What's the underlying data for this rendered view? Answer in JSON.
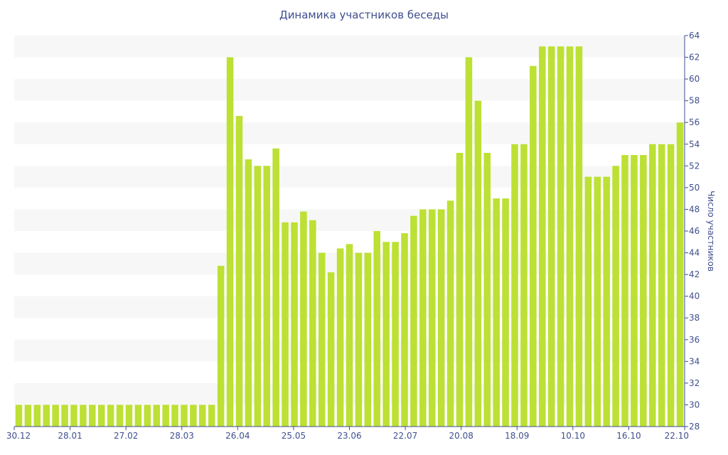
{
  "chart_data": {
    "type": "bar",
    "title": "Динамика участников беседы",
    "xlabel": "",
    "ylabel": "Число участников",
    "ylim": [
      28,
      64
    ],
    "y_ticks": [
      28,
      30,
      32,
      34,
      36,
      38,
      40,
      42,
      44,
      46,
      48,
      50,
      52,
      54,
      56,
      58,
      60,
      62,
      64
    ],
    "x_tick_labels": [
      "30.12",
      "28.01",
      "27.02",
      "28.03",
      "26.04",
      "25.05",
      "23.06",
      "22.07",
      "20.08",
      "18.09",
      "10.10",
      "16.10",
      "22.10"
    ],
    "bar_color": "#bde034",
    "band_color": "#f7f7f7",
    "values": [
      30,
      30,
      30,
      30,
      30,
      30,
      30,
      30,
      30,
      30,
      30,
      30,
      30,
      30,
      30,
      30,
      30,
      30,
      30,
      30,
      30,
      30,
      42.8,
      62,
      56.6,
      52.6,
      52,
      52,
      53.6,
      46.8,
      46.8,
      47.8,
      47,
      44,
      42.2,
      44.4,
      44.8,
      44,
      44,
      46,
      45,
      45,
      45.8,
      47.4,
      48,
      48,
      48,
      48.8,
      53.2,
      62,
      58,
      53.2,
      49,
      49,
      54,
      54,
      61.2,
      63,
      63,
      63,
      63,
      63,
      51,
      51,
      51,
      52,
      53,
      53,
      53,
      54,
      54,
      54,
      56
    ]
  }
}
